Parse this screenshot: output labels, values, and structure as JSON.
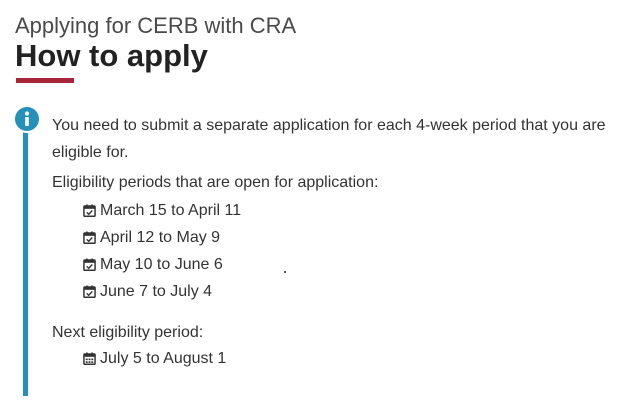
{
  "header": {
    "subtitle": "Applying for CERB with CRA",
    "title": "How to apply"
  },
  "alert": {
    "icon": "info-icon",
    "intro": "You need to submit a separate application for each 4-week period that you are eligible for.",
    "open_heading": "Eligibility periods that are open for application:",
    "open_periods": [
      "March 15 to April 11",
      "April 12 to May 9",
      "May 10 to June 6",
      "June 7 to July 4"
    ],
    "next_heading": "Next eligibility period:",
    "next_periods": [
      "July 5 to August 1"
    ]
  },
  "colors": {
    "accent_rule": "#a8263a",
    "info_blue": "#2590b8",
    "text": "#333333"
  }
}
